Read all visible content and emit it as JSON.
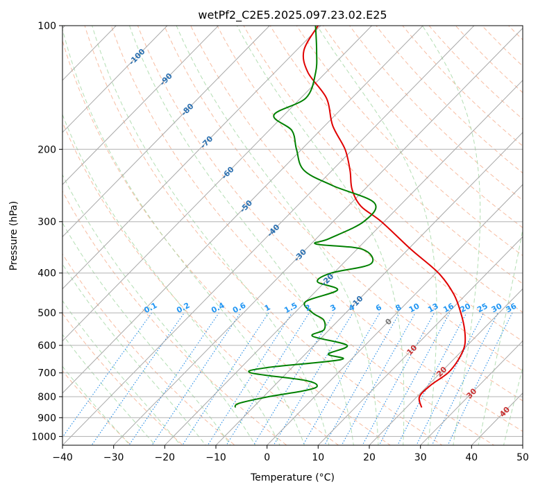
{
  "chart_data": {
    "type": "line",
    "diagram": "skew-T log-p",
    "title": "wetPf2_C2E5.2025.097.23.02.E25",
    "xlabel": "Temperature (°C)",
    "ylabel": "Pressure (hPa)",
    "xlim": [
      -40,
      50
    ],
    "ylim": [
      1050,
      100
    ],
    "y_scale": "log",
    "grid": true,
    "x_ticks": [
      -40,
      -30,
      -20,
      -10,
      0,
      10,
      20,
      30,
      40,
      50
    ],
    "y_ticks": [
      100,
      200,
      300,
      400,
      500,
      600,
      700,
      800,
      900,
      1000
    ],
    "series": [
      {
        "color": "#e00000",
        "points": [
          [
            850,
            23.0
          ],
          [
            800,
            20.5
          ],
          [
            750,
            20.5
          ],
          [
            700,
            21.5
          ],
          [
            650,
            21.0
          ],
          [
            600,
            19.5
          ],
          [
            550,
            16.5
          ],
          [
            500,
            12.5
          ],
          [
            450,
            7.5
          ],
          [
            400,
            0.5
          ],
          [
            350,
            -9.5
          ],
          [
            300,
            -20.5
          ],
          [
            275,
            -27.5
          ],
          [
            250,
            -32.5
          ],
          [
            225,
            -36.5
          ],
          [
            200,
            -41.5
          ],
          [
            175,
            -48.5
          ],
          [
            150,
            -55.0
          ],
          [
            130,
            -63.5
          ],
          [
            115,
            -68.5
          ],
          [
            100,
            -70.5
          ]
        ]
      },
      {
        "color": "#008000",
        "points": [
          [
            850,
            -13.5
          ],
          [
            830,
            -13.5
          ],
          [
            800,
            -9.0
          ],
          [
            775,
            -3.5
          ],
          [
            755,
            -1.5
          ],
          [
            730,
            -5.0
          ],
          [
            700,
            -17.0
          ],
          [
            680,
            -15.0
          ],
          [
            650,
            -2.0
          ],
          [
            630,
            -5.5
          ],
          [
            600,
            -3.5
          ],
          [
            570,
            -12.0
          ],
          [
            550,
            -11.0
          ],
          [
            520,
            -13.0
          ],
          [
            500,
            -16.5
          ],
          [
            470,
            -20.0
          ],
          [
            440,
            -16.0
          ],
          [
            420,
            -21.5
          ],
          [
            400,
            -20.5
          ],
          [
            380,
            -14.5
          ],
          [
            350,
            -19.0
          ],
          [
            340,
            -29.0
          ],
          [
            330,
            -27.5
          ],
          [
            300,
            -24.0
          ],
          [
            270,
            -25.5
          ],
          [
            245,
            -37.0
          ],
          [
            225,
            -45.5
          ],
          [
            200,
            -51.0
          ],
          [
            180,
            -55.5
          ],
          [
            165,
            -62.0
          ],
          [
            150,
            -59.0
          ],
          [
            130,
            -62.0
          ],
          [
            115,
            -66.0
          ],
          [
            100,
            -71.0
          ]
        ]
      }
    ],
    "mixing_ratio_labels": [
      "0.1",
      "0.2",
      "0.4",
      "0.6",
      "1",
      "1.5",
      "2",
      "3",
      "4",
      "6",
      "8",
      "10",
      "13",
      "16",
      "20",
      "25",
      "30",
      "36"
    ],
    "mixing_ratio_values": [
      0.1,
      0.2,
      0.4,
      0.6,
      1,
      1.5,
      2,
      3,
      4,
      6,
      8,
      10,
      13,
      16,
      20,
      25,
      30,
      36
    ],
    "isotherm_labels": [
      "-100",
      "-90",
      "-80",
      "-70",
      "-60",
      "-50",
      "-40",
      "-30",
      "-20",
      "-10"
    ],
    "isotherm_label_positions": [
      {
        "label": "-100",
        "T": -100,
        "p": 119
      },
      {
        "label": "-90",
        "T": -90,
        "p": 135
      },
      {
        "label": "-80",
        "T": -80,
        "p": 160
      },
      {
        "label": "-70",
        "T": -70,
        "p": 192
      },
      {
        "label": "-60",
        "T": -60,
        "p": 228
      },
      {
        "label": "-50",
        "T": -50,
        "p": 275
      },
      {
        "label": "-40",
        "T": -40,
        "p": 315
      },
      {
        "label": "-30",
        "T": -30,
        "p": 362
      },
      {
        "label": "-20",
        "T": -20,
        "p": 415
      },
      {
        "label": "-10",
        "T": -10,
        "p": 470
      }
    ],
    "isotherm_labels_pos": [
      "0",
      "10",
      "20",
      "30",
      "40"
    ],
    "isotherm_label_positions_pos": [
      {
        "label": "0",
        "T": 0,
        "p": 525
      },
      {
        "label": "10",
        "T": 10,
        "p": 615
      },
      {
        "label": "20",
        "T": 20,
        "p": 695
      },
      {
        "label": "30",
        "T": 30,
        "p": 785
      },
      {
        "label": "40",
        "T": 40,
        "p": 870
      }
    ],
    "colors": {
      "isotherm": "#a8a8a8",
      "dry_adiabat": "#f4a582",
      "moist_adiabat": "#a6d8a6",
      "mixing_ratio": "#1e88e5",
      "isotherm_label_neg": "#2a6fb0",
      "isotherm_label_pos": "#c83030",
      "isotherm_label_zero": "#777777",
      "mixing_label": "#2196f3"
    }
  }
}
